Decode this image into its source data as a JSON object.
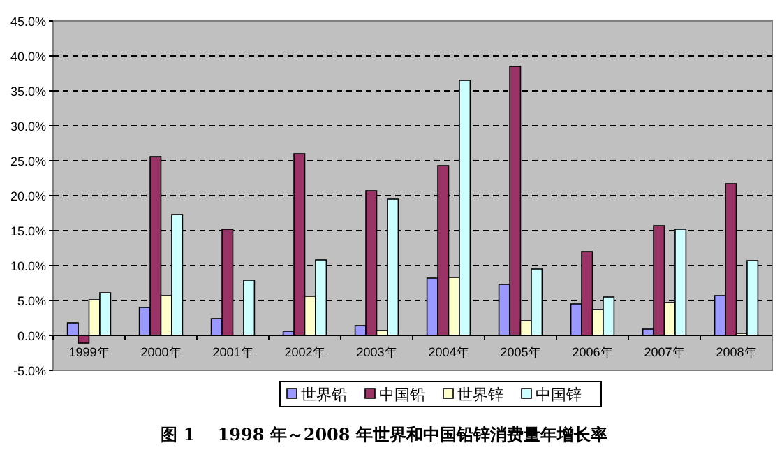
{
  "chart_data": {
    "type": "bar",
    "title": "图 1　 1998 年～2008 年世界和中国铅锌消费量年增长率",
    "categories": [
      "1999年",
      "2000年",
      "2001年",
      "2002年",
      "2003年",
      "2004年",
      "2005年",
      "2006年",
      "2007年",
      "2008年"
    ],
    "series": [
      {
        "name": "世界铅",
        "color": "#9999ff",
        "values": [
          1.8,
          4.0,
          2.4,
          0.6,
          1.4,
          8.2,
          7.3,
          4.5,
          0.9,
          5.7
        ]
      },
      {
        "name": "中国铅",
        "color": "#993366",
        "values": [
          -1.1,
          25.6,
          15.2,
          26.0,
          20.7,
          24.3,
          38.5,
          12.0,
          15.7,
          21.7
        ]
      },
      {
        "name": "世界锌",
        "color": "#ffffcc",
        "values": [
          5.1,
          5.7,
          null,
          5.6,
          0.7,
          8.3,
          2.1,
          3.7,
          4.7,
          0.3
        ]
      },
      {
        "name": "中国锌",
        "color": "#ccffff",
        "values": [
          6.1,
          17.3,
          7.9,
          10.8,
          19.5,
          36.5,
          9.5,
          5.5,
          15.2,
          10.7
        ]
      }
    ],
    "ylim": [
      -5,
      45
    ],
    "yticks": [
      {
        "value": -5,
        "label": "-5.0%"
      },
      {
        "value": 0,
        "label": "0.0%"
      },
      {
        "value": 5,
        "label": "5.0%"
      },
      {
        "value": 10,
        "label": "10.0%"
      },
      {
        "value": 15,
        "label": "15.0%"
      },
      {
        "value": 20,
        "label": "20.0%"
      },
      {
        "value": 25,
        "label": "25.0%"
      },
      {
        "value": 30,
        "label": "30.0%"
      },
      {
        "value": 35,
        "label": "35.0%"
      },
      {
        "value": 40,
        "label": "40.0%"
      },
      {
        "value": 45,
        "label": "45.0%"
      }
    ],
    "grid": "y",
    "legend": "bottom",
    "line_style": "dashed"
  }
}
